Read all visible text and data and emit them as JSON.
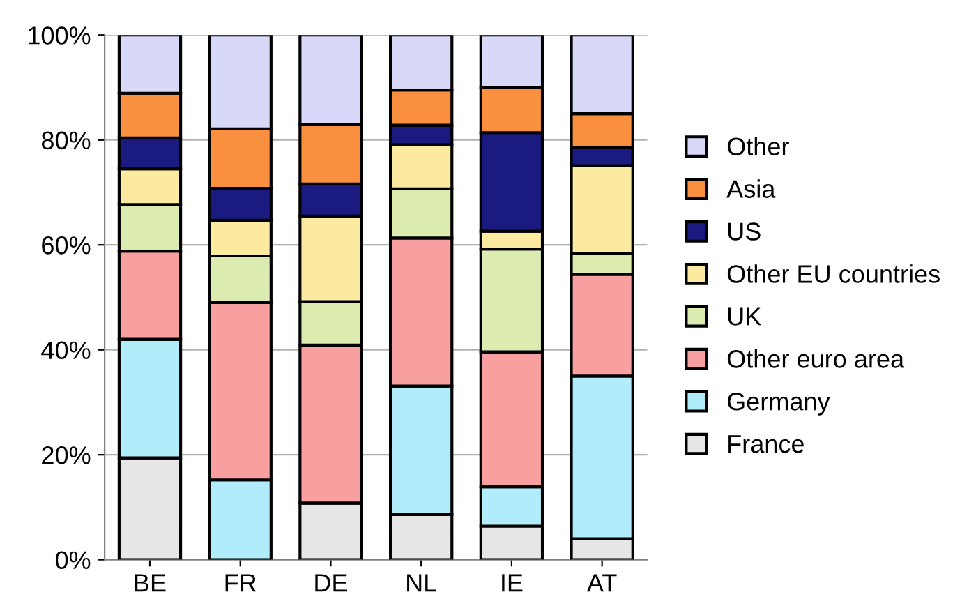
{
  "chart_data": {
    "type": "bar",
    "stacked": true,
    "categories": [
      "BE",
      "FR",
      "DE",
      "NL",
      "IE",
      "AT"
    ],
    "series": [
      {
        "name": "France",
        "color": "#e6e6e6",
        "values": [
          19.4,
          0,
          10.8,
          8.6,
          6.4,
          4.0
        ]
      },
      {
        "name": "Germany",
        "color": "#b0ecfa",
        "values": [
          22.6,
          15.2,
          0,
          24.5,
          7.5,
          31.0
        ]
      },
      {
        "name": "Other euro area",
        "color": "#f8a0a0",
        "values": [
          16.8,
          33.8,
          30.1,
          28.2,
          25.7,
          19.4
        ]
      },
      {
        "name": "UK",
        "color": "#dcebb0",
        "values": [
          8.9,
          8.9,
          8.3,
          9.4,
          19.6,
          3.9
        ]
      },
      {
        "name": "Other EU countries",
        "color": "#fbeaa0",
        "values": [
          6.8,
          6.8,
          16.3,
          8.4,
          3.4,
          16.8
        ]
      },
      {
        "name": "US",
        "color": "#1a1a80",
        "values": [
          5.9,
          6.1,
          6.1,
          3.7,
          18.8,
          3.5
        ]
      },
      {
        "name": "Asia",
        "color": "#f89040",
        "values": [
          8.5,
          11.3,
          11.4,
          6.7,
          8.6,
          6.4
        ]
      },
      {
        "name": "Other",
        "color": "#d8d8f8",
        "values": [
          11.1,
          17.9,
          17.0,
          10.5,
          10.0,
          15.0
        ]
      }
    ],
    "ylim": [
      0,
      100
    ],
    "yticks": [
      {
        "value": 0,
        "label": "0%"
      },
      {
        "value": 20,
        "label": "20%"
      },
      {
        "value": 40,
        "label": "40%"
      },
      {
        "value": 60,
        "label": "60%"
      },
      {
        "value": 80,
        "label": "80%"
      },
      {
        "value": 100,
        "label": "100%"
      }
    ],
    "grid": "y",
    "legend": "right"
  }
}
